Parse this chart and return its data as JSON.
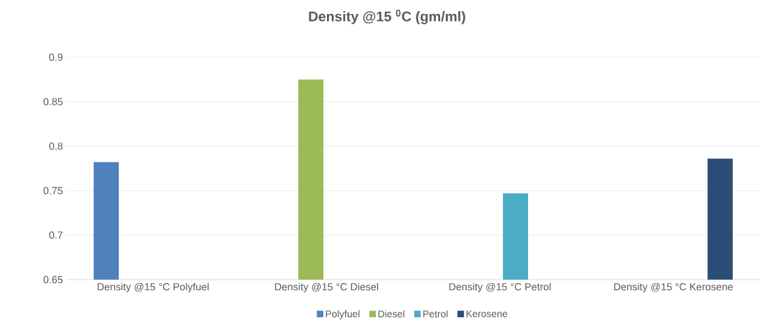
{
  "chart_data": {
    "type": "bar",
    "title": "Density @15 $^{0}$C (gm/ml)",
    "categories": [
      "Density @15 °C Polyfuel",
      "Density @15 °C Diesel",
      "Density @15 °C Petrol",
      "Density @15 °C Kerosene"
    ],
    "series": [
      {
        "name": "Polyfuel",
        "color": "#4f81bd",
        "values": [
          0.782,
          null,
          null,
          null
        ]
      },
      {
        "name": "Diesel",
        "color": "#9bbb59",
        "values": [
          null,
          0.875,
          null,
          null
        ]
      },
      {
        "name": "Petrol",
        "color": "#4bacc6",
        "values": [
          null,
          null,
          0.747,
          null
        ]
      },
      {
        "name": "Kerosene",
        "color": "#2c4d75",
        "values": [
          null,
          null,
          null,
          0.786
        ]
      }
    ],
    "ylim": [
      0.65,
      0.9
    ],
    "yticks": [
      0.65,
      0.7,
      0.75,
      0.8,
      0.85,
      0.9
    ],
    "grid": "y",
    "legend": "bottom"
  }
}
